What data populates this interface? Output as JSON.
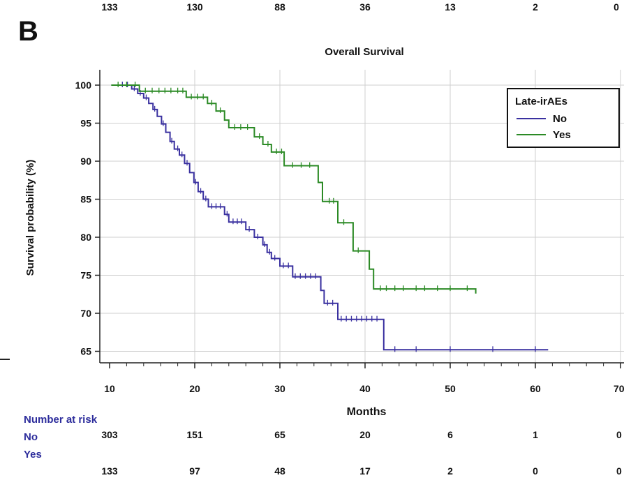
{
  "panel_label": "B",
  "top_risk_row": [
    "133",
    "130",
    "88",
    "36",
    "13",
    "2",
    "0"
  ],
  "chart_data": {
    "type": "line",
    "title": "Overall Survival",
    "xlabel": "Months",
    "ylabel": "Survival probability (%)",
    "xlim": [
      10,
      70
    ],
    "ylim": [
      64,
      101
    ],
    "x_ticks": [
      10,
      20,
      30,
      40,
      50,
      60,
      70
    ],
    "y_ticks": [
      65,
      70,
      75,
      80,
      85,
      90,
      95,
      100
    ],
    "grid": true,
    "legend": {
      "title": "Late-irAEs",
      "position": "top-right"
    },
    "series": [
      {
        "name": "No",
        "color": "#3a31a0",
        "points": [
          [
            10.2,
            100
          ],
          [
            12.6,
            100
          ],
          [
            12.6,
            99.5
          ],
          [
            13.3,
            99.5
          ],
          [
            13.3,
            98.9
          ],
          [
            14.0,
            98.9
          ],
          [
            14.0,
            98.3
          ],
          [
            14.6,
            98.3
          ],
          [
            14.6,
            97.6
          ],
          [
            15.1,
            97.6
          ],
          [
            15.1,
            96.8
          ],
          [
            15.6,
            96.8
          ],
          [
            15.6,
            95.9
          ],
          [
            16.1,
            95.9
          ],
          [
            16.1,
            94.9
          ],
          [
            16.6,
            94.9
          ],
          [
            16.6,
            93.8
          ],
          [
            17.1,
            93.8
          ],
          [
            17.1,
            92.6
          ],
          [
            17.6,
            92.6
          ],
          [
            17.6,
            91.6
          ],
          [
            18.2,
            91.6
          ],
          [
            18.2,
            90.8
          ],
          [
            18.8,
            90.8
          ],
          [
            18.8,
            89.7
          ],
          [
            19.4,
            89.7
          ],
          [
            19.4,
            88.5
          ],
          [
            19.9,
            88.5
          ],
          [
            19.9,
            87.2
          ],
          [
            20.4,
            87.2
          ],
          [
            20.4,
            86.0
          ],
          [
            21.0,
            86.0
          ],
          [
            21.0,
            85.0
          ],
          [
            21.6,
            85.0
          ],
          [
            21.6,
            84.0
          ],
          [
            23.5,
            84.0
          ],
          [
            23.5,
            83.0
          ],
          [
            24.0,
            83.0
          ],
          [
            24.0,
            82.0
          ],
          [
            26.0,
            82.0
          ],
          [
            26.0,
            81.0
          ],
          [
            27.0,
            81.0
          ],
          [
            27.0,
            80.0
          ],
          [
            28.0,
            80.0
          ],
          [
            28.0,
            79.0
          ],
          [
            28.5,
            79.0
          ],
          [
            28.5,
            78.0
          ],
          [
            29.0,
            78.0
          ],
          [
            29.0,
            77.2
          ],
          [
            30.0,
            77.2
          ],
          [
            30.0,
            76.2
          ],
          [
            31.5,
            76.2
          ],
          [
            31.5,
            74.8
          ],
          [
            34.8,
            74.8
          ],
          [
            34.8,
            73.0
          ],
          [
            35.2,
            73.0
          ],
          [
            35.2,
            71.3
          ],
          [
            36.8,
            71.3
          ],
          [
            36.8,
            69.2
          ],
          [
            42.2,
            69.2
          ],
          [
            42.2,
            65.2
          ],
          [
            61.5,
            65.2
          ]
        ],
        "censor_x": [
          11.5,
          12.1,
          12.9,
          13.6,
          14.3,
          15.3,
          16.3,
          17.3,
          18.0,
          18.5,
          19.1,
          20.1,
          20.7,
          21.3,
          22.0,
          22.5,
          23.0,
          23.8,
          24.5,
          25.0,
          25.5,
          26.4,
          27.4,
          28.2,
          28.8,
          29.4,
          30.4,
          31.0,
          31.8,
          32.4,
          33.0,
          33.6,
          34.2,
          35.6,
          36.2,
          37.2,
          37.8,
          38.4,
          39.0,
          39.6,
          40.2,
          40.8,
          41.4,
          43.5,
          46.0,
          50.0,
          55.0,
          60.0
        ]
      },
      {
        "name": "Yes",
        "color": "#2b8a25",
        "points": [
          [
            10.2,
            100
          ],
          [
            13.5,
            100
          ],
          [
            13.5,
            99.2
          ],
          [
            19.0,
            99.2
          ],
          [
            19.0,
            98.4
          ],
          [
            21.5,
            98.4
          ],
          [
            21.5,
            97.6
          ],
          [
            22.5,
            97.6
          ],
          [
            22.5,
            96.6
          ],
          [
            23.5,
            96.6
          ],
          [
            23.5,
            95.4
          ],
          [
            24.0,
            95.4
          ],
          [
            24.0,
            94.4
          ],
          [
            27.0,
            94.4
          ],
          [
            27.0,
            93.2
          ],
          [
            28.0,
            93.2
          ],
          [
            28.0,
            92.2
          ],
          [
            29.0,
            92.2
          ],
          [
            29.0,
            91.2
          ],
          [
            30.5,
            91.2
          ],
          [
            30.5,
            89.4
          ],
          [
            34.5,
            89.4
          ],
          [
            34.5,
            87.2
          ],
          [
            35.0,
            87.2
          ],
          [
            35.0,
            84.7
          ],
          [
            36.8,
            84.7
          ],
          [
            36.8,
            81.9
          ],
          [
            38.6,
            81.9
          ],
          [
            38.6,
            78.2
          ],
          [
            40.5,
            78.2
          ],
          [
            40.5,
            75.8
          ],
          [
            41.0,
            75.8
          ],
          [
            41.0,
            73.2
          ],
          [
            53.0,
            73.2
          ],
          [
            53.0,
            72.6
          ]
        ],
        "censor_x": [
          11.0,
          12.0,
          13.0,
          14.2,
          15.0,
          15.8,
          16.5,
          17.2,
          18.0,
          18.6,
          19.6,
          20.3,
          21.0,
          22.0,
          23.0,
          24.7,
          25.4,
          26.2,
          27.6,
          28.6,
          29.6,
          30.2,
          31.5,
          32.5,
          33.5,
          35.8,
          36.3,
          37.5,
          39.2,
          41.8,
          42.5,
          43.5,
          44.5,
          46.0,
          47.0,
          48.5,
          50.0,
          52.0
        ]
      }
    ]
  },
  "risk_table": {
    "title": "Number at risk",
    "rows": [
      {
        "label": "No",
        "values": [
          "303",
          "151",
          "65",
          "20",
          "6",
          "1",
          "0"
        ]
      },
      {
        "label": "Yes",
        "values": [
          "133",
          "97",
          "48",
          "17",
          "2",
          "0",
          "0"
        ]
      }
    ]
  },
  "colors": {
    "no": "#3a31a0",
    "yes": "#2b8a25",
    "risk_label": "#2d2d9c",
    "grid": "#cfcfcf"
  }
}
